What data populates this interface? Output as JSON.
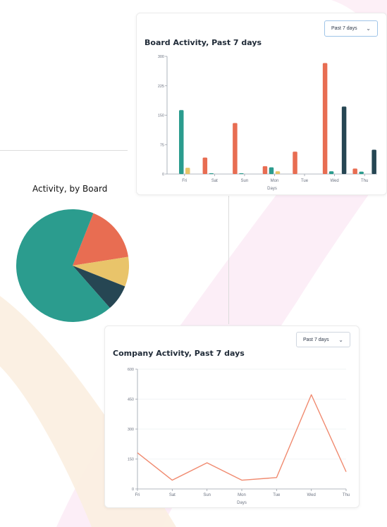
{
  "colors": {
    "orange": "#e86d52",
    "teal": "#2b9c8e",
    "yellow": "#e9c46a",
    "navy": "#264653",
    "line": "#f08a6f"
  },
  "board_card": {
    "title": "Board Activity, Past 7 days",
    "dropdown_value": "Past 7 days"
  },
  "pie": {
    "title": "Activity, by Board"
  },
  "company_card": {
    "title": "Company Activity, Past 7 days",
    "dropdown_value": "Past 7 days"
  },
  "chart_data": [
    {
      "type": "bar",
      "title": "Board Activity, Past 7 days",
      "xlabel": "Days",
      "ylabel": "",
      "ylim": [
        0,
        300
      ],
      "yticks": [
        0,
        75,
        150,
        225,
        300
      ],
      "categories": [
        "Fri",
        "Sat",
        "Sun",
        "Mon",
        "Tue",
        "Wed",
        "Thu"
      ],
      "grid": false,
      "series": [
        {
          "color": "#e86d52",
          "values": [
            0,
            42,
            130,
            20,
            57,
            283,
            14
          ]
        },
        {
          "color": "#2b9c8e",
          "values": [
            163,
            2,
            2,
            17,
            0,
            7,
            6
          ]
        },
        {
          "color": "#e9c46a",
          "values": [
            16,
            0,
            0,
            7,
            0,
            0,
            0
          ]
        },
        {
          "color": "#264653",
          "values": [
            0,
            0,
            0,
            0,
            0,
            172,
            62
          ]
        }
      ]
    },
    {
      "type": "pie",
      "title": "Activity, by Board",
      "values": [
        16.5,
        8.5,
        7.5,
        67.5
      ],
      "colors": [
        "#e86d52",
        "#e9c46a",
        "#264653",
        "#2b9c8e"
      ]
    },
    {
      "type": "line",
      "title": "Company Activity, Past 7 days",
      "xlabel": "Days",
      "ylabel": "",
      "ylim": [
        0,
        600
      ],
      "yticks": [
        0,
        150,
        300,
        450,
        600
      ],
      "categories": [
        "Fri",
        "Sat",
        "Sun",
        "Mon",
        "Tue",
        "Wed",
        "Thu"
      ],
      "grid": true,
      "series": [
        {
          "color": "#f08a6f",
          "values": [
            181,
            44,
            131,
            44,
            57,
            472,
            86
          ]
        }
      ]
    }
  ]
}
